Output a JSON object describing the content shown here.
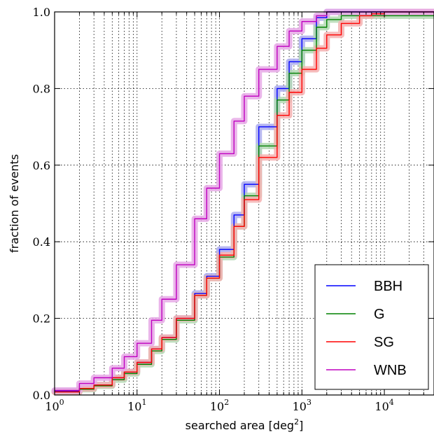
{
  "chart_data": {
    "type": "line",
    "title": "",
    "xlabel": "searched area [deg",
    "xlabel_sup": "2",
    "xlabel_suffix": "]",
    "ylabel": "fraction of events",
    "xscale": "log",
    "xlim": [
      1,
      40000
    ],
    "ylim": [
      0.0,
      1.0
    ],
    "grid": true,
    "legend": "lower-right",
    "x_ticks": [
      {
        "base": "10",
        "exp": "0",
        "value": 1
      },
      {
        "base": "10",
        "exp": "1",
        "value": 10
      },
      {
        "base": "10",
        "exp": "2",
        "value": 100
      },
      {
        "base": "10",
        "exp": "3",
        "value": 1000
      },
      {
        "base": "10",
        "exp": "4",
        "value": 10000
      }
    ],
    "y_ticks": [
      "0.0",
      "0.2",
      "0.4",
      "0.6",
      "0.8",
      "1.0"
    ],
    "series": [
      {
        "name": "BBH",
        "color": "#0000ff",
        "band": "#aaaaee",
        "x": [
          1,
          2,
          3,
          5,
          7,
          10,
          15,
          20,
          30,
          50,
          70,
          100,
          150,
          200,
          300,
          500,
          700,
          1000,
          1500,
          2000,
          3000,
          40000
        ],
        "y": [
          0.01,
          0.017,
          0.026,
          0.045,
          0.06,
          0.085,
          0.12,
          0.15,
          0.2,
          0.265,
          0.31,
          0.38,
          0.47,
          0.55,
          0.7,
          0.8,
          0.87,
          0.93,
          0.985,
          1.0,
          1.0,
          1.0
        ]
      },
      {
        "name": "G",
        "color": "#008000",
        "band": "#b3d9b3",
        "x": [
          1,
          2,
          3,
          5,
          7,
          10,
          15,
          20,
          30,
          50,
          70,
          100,
          150,
          200,
          300,
          500,
          700,
          1000,
          1500,
          2000,
          3000,
          5000,
          40000
        ],
        "y": [
          0.008,
          0.015,
          0.024,
          0.04,
          0.056,
          0.08,
          0.115,
          0.145,
          0.195,
          0.26,
          0.305,
          0.36,
          0.44,
          0.52,
          0.65,
          0.77,
          0.84,
          0.9,
          0.96,
          0.98,
          0.99,
          0.99,
          0.99
        ]
      },
      {
        "name": "SG",
        "color": "#ff0000",
        "band": "#f5b0b0",
        "x": [
          1,
          2,
          3,
          5,
          7,
          10,
          15,
          20,
          30,
          50,
          70,
          100,
          150,
          200,
          300,
          500,
          700,
          1000,
          1500,
          2000,
          3000,
          5000,
          7000,
          10000,
          40000
        ],
        "y": [
          0.008,
          0.017,
          0.026,
          0.045,
          0.06,
          0.085,
          0.12,
          0.15,
          0.2,
          0.26,
          0.305,
          0.365,
          0.44,
          0.51,
          0.62,
          0.73,
          0.79,
          0.85,
          0.905,
          0.94,
          0.97,
          0.99,
          0.995,
          1.0,
          1.0
        ]
      },
      {
        "name": "WNB",
        "color": "#bf00bf",
        "band": "#e6a8e6",
        "x": [
          1,
          2,
          3,
          5,
          7,
          10,
          15,
          20,
          30,
          50,
          70,
          100,
          150,
          200,
          300,
          500,
          700,
          1000,
          1500,
          2000,
          3000,
          40000
        ],
        "y": [
          0.012,
          0.03,
          0.045,
          0.07,
          0.1,
          0.135,
          0.195,
          0.25,
          0.34,
          0.46,
          0.54,
          0.63,
          0.715,
          0.78,
          0.85,
          0.91,
          0.95,
          0.975,
          0.99,
          1.0,
          1.0,
          1.0
        ]
      }
    ]
  }
}
